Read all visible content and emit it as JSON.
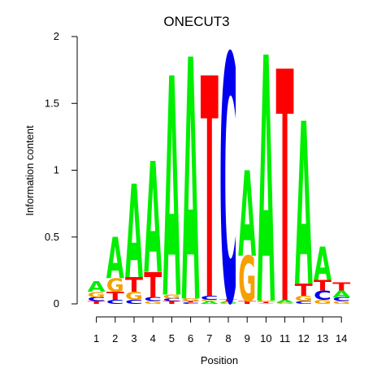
{
  "chart_data": {
    "type": "sequence-logo",
    "title": "ONECUT3",
    "xlabel": "Position",
    "ylabel": "Information content",
    "ylim": [
      0,
      2
    ],
    "y_ticks": [
      "0",
      "0.5",
      "1",
      "1.5",
      "2"
    ],
    "x_ticks": [
      "1",
      "2",
      "3",
      "4",
      "5",
      "6",
      "7",
      "8",
      "9",
      "10",
      "11",
      "12",
      "13",
      "14"
    ],
    "colors": {
      "A": "#00ee00",
      "C": "#0000ee",
      "G": "#f5a000",
      "T": "#ff0000"
    },
    "positions": [
      {
        "position": 1,
        "letters": [
          [
            "T",
            0.02
          ],
          [
            "C",
            0.03
          ],
          [
            "G",
            0.04
          ],
          [
            "A",
            0.08
          ]
        ]
      },
      {
        "position": 2,
        "letters": [
          [
            "C",
            0.03
          ],
          [
            "T",
            0.06
          ],
          [
            "G",
            0.1
          ],
          [
            "A",
            0.31
          ]
        ]
      },
      {
        "position": 3,
        "letters": [
          [
            "C",
            0.03
          ],
          [
            "G",
            0.06
          ],
          [
            "T",
            0.11
          ],
          [
            "A",
            0.7
          ]
        ]
      },
      {
        "position": 4,
        "letters": [
          [
            "G",
            0.02
          ],
          [
            "C",
            0.03
          ],
          [
            "T",
            0.19
          ],
          [
            "A",
            0.83
          ]
        ]
      },
      {
        "position": 5,
        "letters": [
          [
            "T",
            0.02
          ],
          [
            "C",
            0.02
          ],
          [
            "G",
            0.03
          ],
          [
            "A",
            1.64
          ]
        ]
      },
      {
        "position": 6,
        "letters": [
          [
            "C",
            0.01
          ],
          [
            "T",
            0.01
          ],
          [
            "G",
            0.02
          ],
          [
            "A",
            1.81
          ]
        ]
      },
      {
        "position": 7,
        "letters": [
          [
            "A",
            0.02
          ],
          [
            "G",
            0.01
          ],
          [
            "C",
            0.03
          ],
          [
            "T",
            1.65
          ]
        ]
      },
      {
        "position": 8,
        "letters": [
          [
            "G",
            0.01
          ],
          [
            "A",
            0.01
          ],
          [
            "T",
            0.01
          ],
          [
            "C",
            1.84
          ]
        ]
      },
      {
        "position": 9,
        "letters": [
          [
            "T",
            0.02
          ],
          [
            "G",
            0.34
          ],
          [
            "A",
            0.64
          ]
        ]
      },
      {
        "position": 10,
        "letters": [
          [
            "C",
            0.005
          ],
          [
            "T",
            0.01
          ],
          [
            "G",
            0.01
          ],
          [
            "A",
            1.84
          ]
        ]
      },
      {
        "position": 11,
        "letters": [
          [
            "G",
            0.01
          ],
          [
            "A",
            0.02
          ],
          [
            "T",
            1.73
          ]
        ]
      },
      {
        "position": 12,
        "letters": [
          [
            "C",
            0.02
          ],
          [
            "G",
            0.04
          ],
          [
            "T",
            0.09
          ],
          [
            "A",
            1.22
          ]
        ]
      },
      {
        "position": 13,
        "letters": [
          [
            "G",
            0.03
          ],
          [
            "C",
            0.07
          ],
          [
            "T",
            0.08
          ],
          [
            "A",
            0.25
          ]
        ]
      },
      {
        "position": 14,
        "letters": [
          [
            "G",
            0.02
          ],
          [
            "C",
            0.03
          ],
          [
            "A",
            0.05
          ],
          [
            "T",
            0.06
          ]
        ]
      }
    ]
  }
}
